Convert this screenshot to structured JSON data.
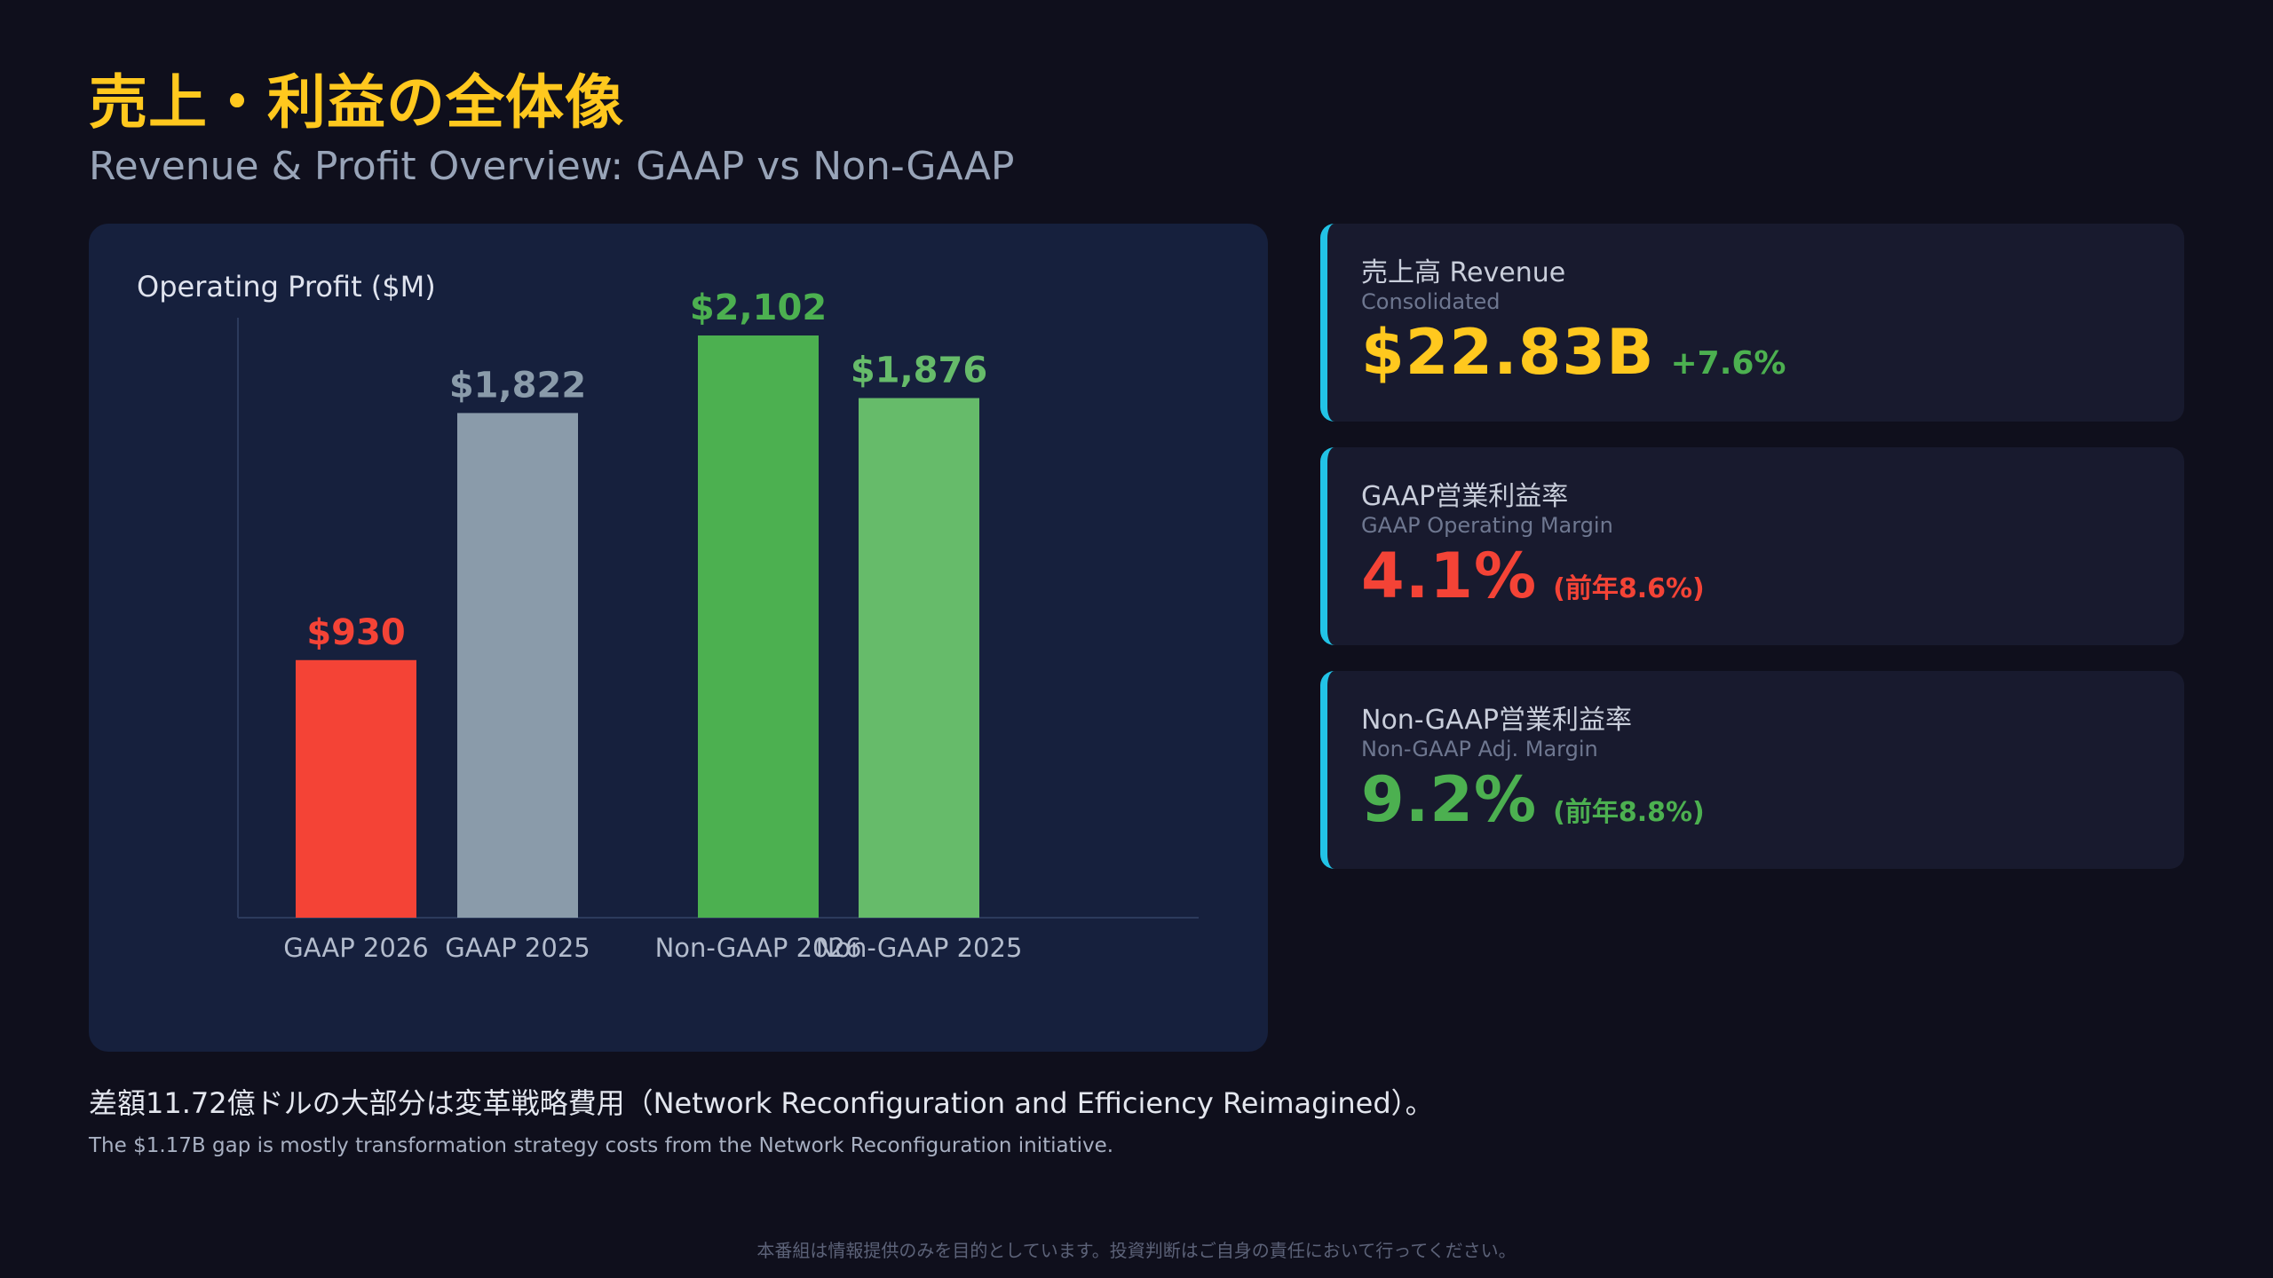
{
  "header": {
    "title_ja": "売上・利益の全体像",
    "title_en": "Revenue & Profit Overview: GAAP vs Non-GAAP"
  },
  "colors": {
    "accent_yellow": "#ffc81e",
    "red": "#f44336",
    "gray": "#8a9baa",
    "green_dark": "#4cb050",
    "green_light": "#66bb6a",
    "card_border": "#22c3e6"
  },
  "chart_data": {
    "type": "bar",
    "title": "Operating Profit ($M)",
    "categories": [
      "GAAP 2026",
      "GAAP 2025",
      "Non-GAAP 2026",
      "Non-GAAP 2025"
    ],
    "values": [
      930,
      1822,
      2102,
      1876
    ],
    "data_labels": [
      "$930",
      "$1,822",
      "$2,102",
      "$1,876"
    ],
    "colors": [
      "#f44336",
      "#8a9baa",
      "#4cb050",
      "#66bb6a"
    ],
    "label_colors": [
      "#f44336",
      "#8a9baa",
      "#4cb050",
      "#66bb6a"
    ],
    "ylim": [
      0,
      2102
    ],
    "grid": false,
    "legend": "none"
  },
  "cards": [
    {
      "title": "売上高 Revenue",
      "subtitle": "Consolidated",
      "value": "$22.83B",
      "delta": "+7.6%",
      "value_color": "#ffc81e",
      "delta_color": "#4cb050"
    },
    {
      "title": "GAAP営業利益率",
      "subtitle": "GAAP Operating Margin",
      "value": "4.1%",
      "delta": "(前年8.6%)",
      "value_color": "#f44336",
      "delta_color": "#f44336"
    },
    {
      "title": "Non-GAAP営業利益率",
      "subtitle": "Non-GAAP Adj. Margin",
      "value": "9.2%",
      "delta": "(前年8.8%)",
      "value_color": "#4cb050",
      "delta_color": "#4cb050"
    }
  ],
  "note": {
    "ja": "差額11.72億ドルの大部分は変革戦略費用（Network Reconfiguration and Efficiency Reimagined）。",
    "en": "The $1.17B gap is mostly transformation strategy costs from the Network Reconfiguration initiative."
  },
  "footer": {
    "disclaimer": "本番組は情報提供のみを目的としています。投資判断はご自身の責任において行ってください。"
  }
}
